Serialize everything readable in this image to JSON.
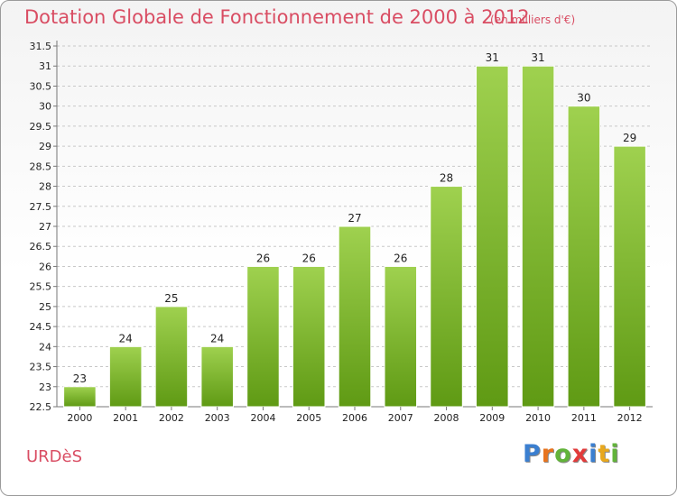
{
  "header": {
    "title": "Dotation Globale de Fonctionnement de 2000 à 2012",
    "unit": "(en milliers d'€)"
  },
  "footer": {
    "commune": "URDèS",
    "logo_letters": [
      {
        "char": "P",
        "color": "#3b7fd0"
      },
      {
        "char": "r",
        "color": "#e8741e"
      },
      {
        "char": "o",
        "color": "#62b33a"
      },
      {
        "char": "x",
        "color": "#e23b3b"
      },
      {
        "char": "i",
        "color": "#3b7fd0"
      },
      {
        "char": "t",
        "color": "#e8a81e"
      },
      {
        "char": "i",
        "color": "#62b33a"
      }
    ]
  },
  "colors": {
    "bar_top": "#9fd14f",
    "bar_bottom": "#5f9a14",
    "bar_stroke": "#ffffff",
    "grid": "#c8c8c8",
    "axis": "#777777"
  },
  "chart_data": {
    "type": "bar",
    "categories": [
      "2000",
      "2001",
      "2002",
      "2003",
      "2004",
      "2005",
      "2006",
      "2007",
      "2008",
      "2009",
      "2010",
      "2011",
      "2012"
    ],
    "values": [
      23,
      24,
      25,
      24,
      26,
      26,
      27,
      26,
      28,
      31,
      31,
      30,
      29
    ],
    "ylim": [
      22.5,
      31.5
    ],
    "yticks": [
      "22.5",
      "23",
      "23.5",
      "24",
      "24.5",
      "25",
      "25.5",
      "26",
      "26.5",
      "27",
      "27.5",
      "28",
      "28.5",
      "29",
      "29.5",
      "30",
      "30.5",
      "31",
      "31.5"
    ],
    "title": "Dotation Globale de Fonctionnement de 2000 à 2012",
    "grid": true,
    "legend": false
  }
}
